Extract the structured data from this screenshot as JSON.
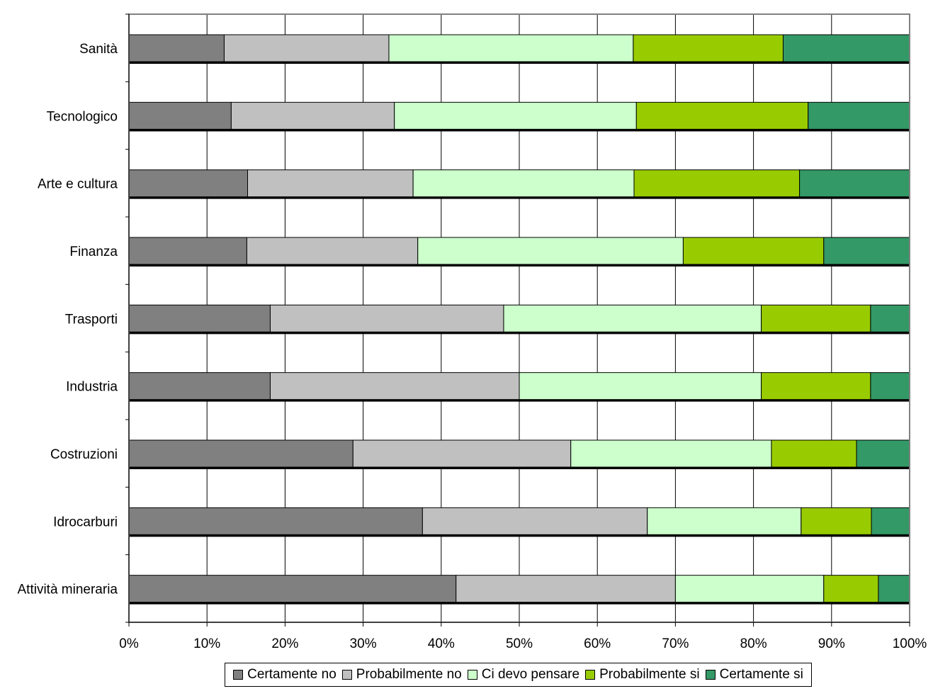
{
  "chart_data": {
    "type": "bar",
    "orientation": "horizontal",
    "stacked": "percent",
    "categories": [
      "Sanità",
      "Tecnologico",
      "Arte e cultura",
      "Finanza",
      "Trasporti",
      "Industria",
      "Costruzioni",
      "Idrocarburi",
      "Attività mineraria"
    ],
    "series": [
      {
        "name": "Certamente no",
        "color": "#808080",
        "values": [
          12.2,
          13.1,
          15.2,
          15.1,
          18.1,
          18.1,
          28.7,
          37.6,
          41.9
        ]
      },
      {
        "name": "Probabilmente no",
        "color": "#c0c0c0",
        "values": [
          21.1,
          20.9,
          21.2,
          21.9,
          29.9,
          31.9,
          27.9,
          28.8,
          28.1
        ]
      },
      {
        "name": "Ci devo pensare",
        "color": "#ccffcc",
        "values": [
          31.3,
          31.0,
          28.3,
          34.0,
          33.0,
          31.0,
          25.7,
          19.7,
          19.0
        ]
      },
      {
        "name": "Probabilmente si",
        "color": "#99cc00",
        "values": [
          19.2,
          22.0,
          21.2,
          18.0,
          14.0,
          14.0,
          10.9,
          9.0,
          7.0
        ]
      },
      {
        "name": "Certamente si",
        "color": "#339966",
        "values": [
          16.2,
          13.0,
          14.1,
          11.0,
          5.0,
          5.0,
          6.8,
          4.9,
          4.0
        ]
      }
    ],
    "xticks": [
      "0%",
      "10%",
      "20%",
      "30%",
      "40%",
      "50%",
      "60%",
      "70%",
      "80%",
      "90%",
      "100%"
    ],
    "xlim": [
      0,
      100
    ],
    "grid": true,
    "legend": "bottom"
  }
}
